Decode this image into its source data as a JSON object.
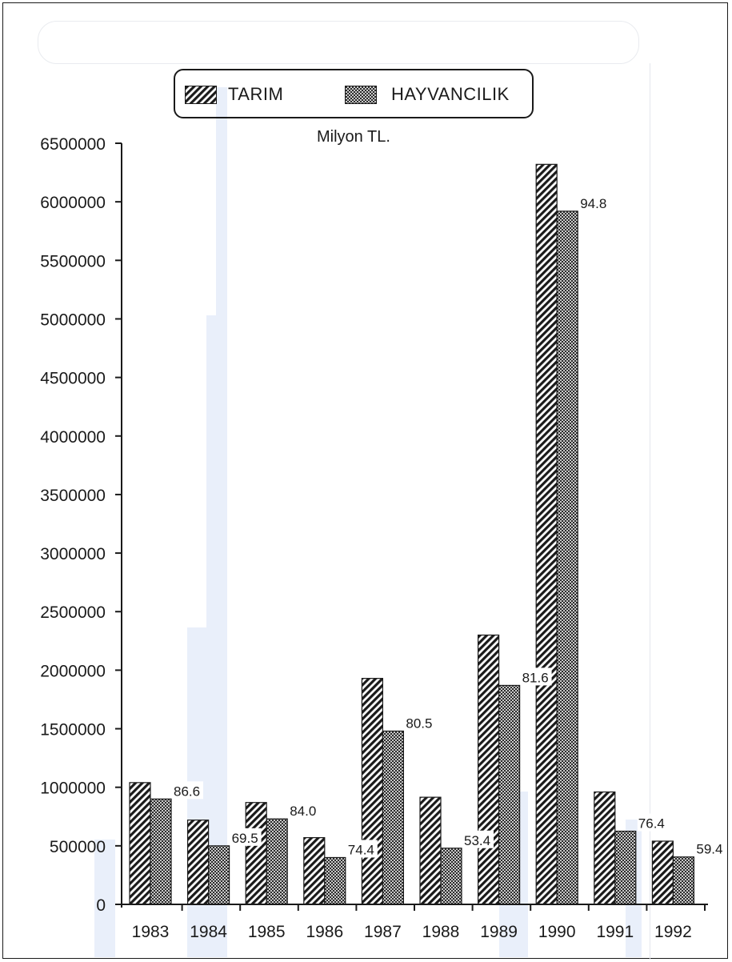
{
  "chart_data": {
    "type": "bar",
    "title": "",
    "unit_label": "Milyon TL.",
    "xlabel": "",
    "ylabel": "",
    "ylim": [
      0,
      6500000
    ],
    "yticks": [
      0,
      500000,
      1000000,
      1500000,
      2000000,
      2500000,
      3000000,
      3500000,
      4000000,
      4500000,
      5000000,
      5500000,
      6000000,
      6500000
    ],
    "categories": [
      "1983",
      "1984",
      "1985",
      "1986",
      "1987",
      "1988",
      "1989",
      "1990",
      "1991",
      "1992"
    ],
    "series": [
      {
        "name": "TARIM",
        "values": [
          1040000,
          720000,
          870000,
          570000,
          1930000,
          915000,
          2300000,
          6320000,
          960000,
          540000
        ]
      },
      {
        "name": "HAYVANCILIK",
        "values": [
          900000,
          500000,
          730000,
          400000,
          1480000,
          480000,
          1870000,
          5920000,
          625000,
          405000
        ]
      }
    ],
    "data_labels": [
      "86.6",
      "69.5",
      "84.0",
      "74.4",
      "80.5",
      "53.4",
      "81.6",
      "94.8",
      "76.4",
      "59.4"
    ],
    "grid": false,
    "legend_position": "top-center"
  },
  "legend": {
    "series1": {
      "label": "TARIM",
      "pattern": "diagonal-hatch-icon"
    },
    "series2": {
      "label": "HAYVANCILIK",
      "pattern": "crosshatch-icon"
    }
  },
  "colors": {
    "ink": "#1a1a1a",
    "paper": "#ffffff",
    "bleed_through": "#e9effa"
  }
}
